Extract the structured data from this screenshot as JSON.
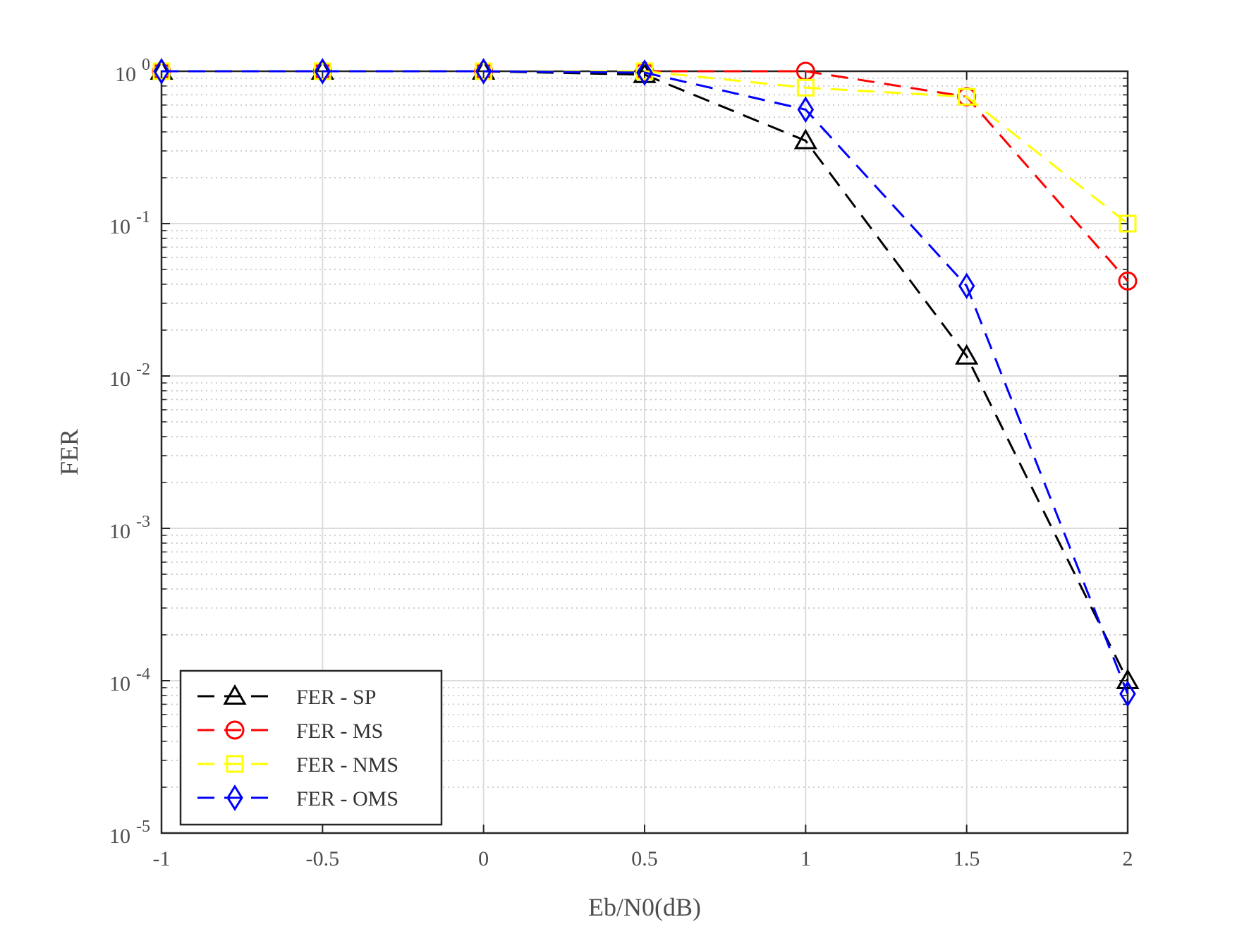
{
  "chart_data": {
    "type": "line",
    "title": "",
    "xlabel": "Eb/N0(dB)",
    "ylabel": "FER",
    "xlim": [
      -1,
      2
    ],
    "ylim": [
      1e-05,
      1
    ],
    "yscale": "log",
    "grid": true,
    "minor_grid": true,
    "legend_position": "bottom-left",
    "x_ticks": [
      "-1",
      "-0.5",
      "0",
      "0.5",
      "1",
      "1.5",
      "2"
    ],
    "y_ticks": [
      {
        "base": "10",
        "exp": "0"
      },
      {
        "base": "10",
        "exp": "-1"
      },
      {
        "base": "10",
        "exp": "-2"
      },
      {
        "base": "10",
        "exp": "-3"
      },
      {
        "base": "10",
        "exp": "-4"
      },
      {
        "base": "10",
        "exp": "-5"
      }
    ],
    "x": [
      -1,
      -0.5,
      0,
      0.5,
      1,
      1.5,
      2
    ],
    "series": [
      {
        "name": "FER - SP",
        "color": "#000000",
        "marker": "triangle",
        "values": [
          1,
          1,
          1,
          0.95,
          0.35,
          0.0135,
          0.0001
        ]
      },
      {
        "name": "FER - MS",
        "color": "#ff0000",
        "marker": "circle",
        "values": [
          1,
          1,
          1,
          1,
          1,
          0.68,
          0.042
        ]
      },
      {
        "name": "FER - NMS",
        "color": "#ffff00",
        "marker": "square",
        "values": [
          1,
          1,
          1,
          1,
          0.78,
          0.68,
          0.1
        ]
      },
      {
        "name": "FER - OMS",
        "color": "#0000ff",
        "marker": "diamond",
        "values": [
          1,
          1,
          1,
          0.98,
          0.56,
          0.039,
          8.2e-05
        ]
      }
    ]
  }
}
